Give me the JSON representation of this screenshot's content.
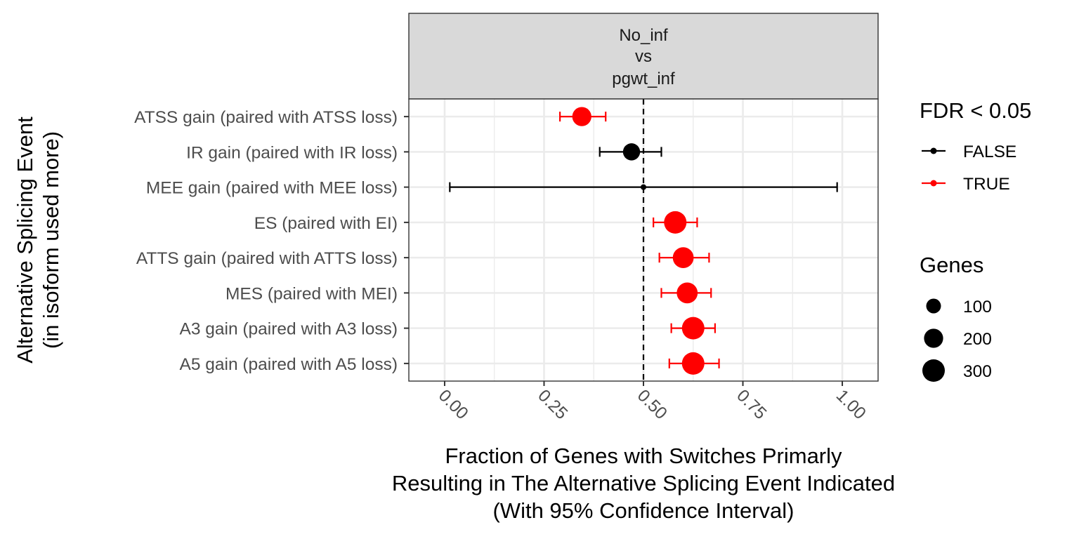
{
  "chart_data": {
    "type": "scatter",
    "facet_label_lines": [
      "No_inf",
      "vs",
      "pgwt_inf"
    ],
    "categories": [
      "ATSS gain (paired with ATSS loss)",
      "IR gain (paired with IR loss)",
      "MEE gain (paired with MEE loss)",
      "ES (paired with EI)",
      "ATTS gain (paired with ATTS loss)",
      "MES (paired with MEI)",
      "A3 gain (paired with A3 loss)",
      "A5 gain (paired with A5 loss)"
    ],
    "points": [
      {
        "category": "ATSS gain (paired with ATSS loss)",
        "x": 0.345,
        "ci_low": 0.29,
        "ci_high": 0.405,
        "fdr": "TRUE",
        "genes": 200
      },
      {
        "category": "IR gain (paired with IR loss)",
        "x": 0.47,
        "ci_low": 0.39,
        "ci_high": 0.545,
        "fdr": "FALSE",
        "genes": 150
      },
      {
        "category": "MEE gain (paired with MEE loss)",
        "x": 0.5,
        "ci_low": 0.013,
        "ci_high": 0.987,
        "fdr": "FALSE",
        "genes": 2
      },
      {
        "category": "ES (paired with EI)",
        "x": 0.58,
        "ci_low": 0.525,
        "ci_high": 0.635,
        "fdr": "TRUE",
        "genes": 300
      },
      {
        "category": "ATTS gain (paired with ATTS loss)",
        "x": 0.6,
        "ci_low": 0.54,
        "ci_high": 0.665,
        "fdr": "TRUE",
        "genes": 250
      },
      {
        "category": "MES (paired with MEI)",
        "x": 0.61,
        "ci_low": 0.545,
        "ci_high": 0.67,
        "fdr": "TRUE",
        "genes": 250
      },
      {
        "category": "A3 gain (paired with A3 loss)",
        "x": 0.625,
        "ci_low": 0.57,
        "ci_high": 0.68,
        "fdr": "TRUE",
        "genes": 300
      },
      {
        "category": "A5 gain (paired with A5 loss)",
        "x": 0.625,
        "ci_low": 0.565,
        "ci_high": 0.69,
        "fdr": "TRUE",
        "genes": 300
      }
    ],
    "reference_line_x": 0.5,
    "xlim": [
      -0.09,
      1.09
    ],
    "xticks": [
      0,
      0.25,
      0.5,
      0.75,
      1
    ],
    "xtick_labels": [
      "0.00",
      "0.25",
      "0.50",
      "0.75",
      "1.00"
    ],
    "xlabel_lines": [
      "Fraction of Genes with Switches Primarly",
      "Resulting in The Alternative Splicing Event Indicated",
      "(With 95% Confidence Interval)"
    ],
    "ylabel_lines": [
      "Alternative Splicing Event",
      "(in isoform used more)"
    ],
    "grid": true,
    "legend_placement": "right",
    "legends": {
      "fdr": {
        "title": "FDR < 0.05",
        "entries": [
          {
            "label": "FALSE",
            "color": "#000000"
          },
          {
            "label": "TRUE",
            "color": "#ff0000"
          }
        ]
      },
      "size": {
        "title": "Genes",
        "entries": [
          {
            "label": "100",
            "value": 100
          },
          {
            "label": "200",
            "value": 200
          },
          {
            "label": "300",
            "value": 300
          }
        ]
      }
    },
    "colors": {
      "true": "#ff0000",
      "false": "#000000",
      "strip_fill": "#d9d9d9",
      "grid": "#ebebeb"
    }
  }
}
